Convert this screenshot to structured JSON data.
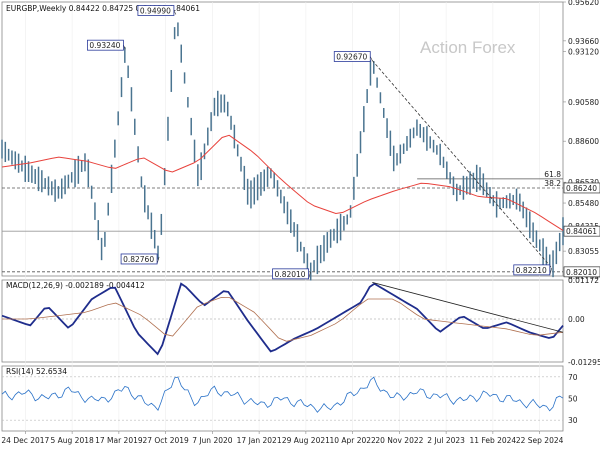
{
  "chart_data": [
    {
      "type": "line",
      "subtype": "ohlc-bars",
      "title": "EURGBP,Weekly",
      "ohlc_label": "0.84422 0.84725 0.84030 0.84061",
      "watermark": "Action Forex",
      "ylim": [
        0.818,
        0.9562
      ],
      "y_tick_labels": [
        "0.95620",
        "0.93660",
        "0.93120",
        "0.90580",
        "0.88600",
        "0.86530",
        "0.85480",
        "0.84315",
        "0.83055",
        "0.81795"
      ],
      "y_tick_values": [
        0.9562,
        0.9366,
        0.9312,
        0.9058,
        0.886,
        0.8653,
        0.8548,
        0.84315,
        0.83055,
        0.81795
      ],
      "series": [
        {
          "name": "price",
          "color": "#4a7490",
          "x": [
            0,
            5,
            10,
            15,
            18,
            21,
            22,
            25,
            28,
            31,
            35,
            38,
            40,
            44,
            48,
            52,
            55,
            58,
            62,
            66,
            70,
            74,
            78,
            81,
            85,
            88,
            92,
            95,
            98,
            100
          ],
          "values": [
            0.882,
            0.87,
            0.86,
            0.876,
            0.8276,
            0.905,
            0.9324,
            0.862,
            0.8276,
            0.9499,
            0.867,
            0.905,
            0.905,
            0.858,
            0.87,
            0.842,
            0.8201,
            0.835,
            0.848,
            0.9267,
            0.875,
            0.893,
            0.88,
            0.86,
            0.868,
            0.854,
            0.857,
            0.838,
            0.8221,
            0.8406
          ]
        },
        {
          "name": "SMA",
          "color": "#e8423c",
          "x": [
            0,
            5,
            10,
            15,
            20,
            25,
            30,
            35,
            40,
            45,
            50,
            55,
            60,
            65,
            70,
            75,
            80,
            85,
            90,
            95,
            100
          ],
          "values": [
            0.873,
            0.875,
            0.878,
            0.876,
            0.872,
            0.878,
            0.87,
            0.876,
            0.89,
            0.88,
            0.866,
            0.854,
            0.849,
            0.856,
            0.861,
            0.865,
            0.863,
            0.858,
            0.857,
            0.85,
            0.841
          ]
        }
      ],
      "annotations": [
        {
          "label": "0.93240",
          "x": 22,
          "y": 0.9324
        },
        {
          "label": "0.94990",
          "x": 31,
          "y": 0.9499
        },
        {
          "label": "0.82760",
          "x": 28,
          "y": 0.8276
        },
        {
          "label": "0.92670",
          "x": 66,
          "y": 0.9267
        },
        {
          "label": "0.82010",
          "x": 55,
          "y": 0.8201
        },
        {
          "label": "0.82210",
          "x": 98,
          "y": 0.8221
        }
      ],
      "levels": [
        {
          "value": 0.8624,
          "label": "0.86240",
          "fib_label": "38.2",
          "style": "dashed"
        },
        {
          "value": 0.867,
          "fib_label": "61.8",
          "style": "solid"
        },
        {
          "value": 0.8201,
          "label": "0.82010",
          "style": "dashed"
        },
        {
          "value": 0.84061,
          "label": "0.84061",
          "style": "solid",
          "boxed": true
        }
      ],
      "trendline": {
        "from": [
          66,
          0.9267
        ],
        "to": [
          98,
          0.8221
        ],
        "style": "dashed"
      }
    },
    {
      "type": "line",
      "title": "MACD(12,26,9) -0.002189 -0.004412",
      "ylim": [
        -0.01295,
        0.01173
      ],
      "y_tick_labels": [
        "0.011727",
        "0.00",
        "-0.012951"
      ],
      "series": [
        {
          "name": "MACD",
          "color": "#1f2d8c",
          "x": [
            0,
            5,
            8,
            12,
            16,
            20,
            24,
            28,
            32,
            36,
            40,
            44,
            48,
            52,
            56,
            60,
            64,
            66,
            70,
            74,
            78,
            82,
            86,
            90,
            94,
            98,
            100
          ],
          "values": [
            0.001,
            -0.002,
            0.004,
            -0.003,
            0.006,
            0.01,
            -0.004,
            -0.011,
            0.011,
            0.004,
            0.009,
            -0.001,
            -0.01,
            -0.006,
            -0.003,
            0.001,
            0.005,
            0.011,
            0.007,
            0.003,
            -0.004,
            0.001,
            -0.003,
            -0.001,
            -0.004,
            -0.006,
            -0.002
          ]
        },
        {
          "name": "Signal",
          "color": "#b07050",
          "x": [
            0,
            5,
            10,
            15,
            20,
            25,
            30,
            35,
            40,
            45,
            50,
            55,
            60,
            65,
            70,
            75,
            80,
            85,
            90,
            95,
            100
          ],
          "values": [
            0.0,
            0.0,
            0.001,
            0.002,
            0.005,
            0.001,
            -0.006,
            0.004,
            0.007,
            0.002,
            -0.007,
            -0.005,
            -0.001,
            0.006,
            0.006,
            0.0,
            -0.001,
            -0.002,
            -0.003,
            -0.005,
            -0.004
          ]
        }
      ],
      "trendline": {
        "from": [
          66,
          0.011
        ],
        "to": [
          100,
          -0.004
        ]
      }
    },
    {
      "type": "line",
      "title": "RSI(14) 52.6534",
      "ylim": [
        20,
        80
      ],
      "y_tick_labels": [
        "70",
        "50",
        "30"
      ],
      "levels": [
        70,
        30
      ],
      "series": [
        {
          "name": "RSI",
          "color": "#2a72c8",
          "x": [
            0,
            4,
            8,
            12,
            16,
            20,
            22,
            24,
            28,
            31,
            34,
            38,
            42,
            46,
            50,
            54,
            58,
            62,
            66,
            70,
            74,
            78,
            82,
            86,
            90,
            94,
            98,
            100
          ],
          "values": [
            52,
            55,
            50,
            58,
            48,
            52,
            62,
            50,
            42,
            72,
            46,
            58,
            52,
            44,
            50,
            44,
            40,
            52,
            66,
            50,
            56,
            52,
            48,
            54,
            50,
            45,
            42,
            52.7
          ]
        }
      ]
    }
  ],
  "x_axis": {
    "labels": [
      "24 Dec 2017",
      "5 Aug 2018",
      "17 Mar 2019",
      "27 Oct 2019",
      "7 Jun 2020",
      "17 Jan 2021",
      "29 Aug 2021",
      "10 Apr 2022",
      "20 Nov 2022",
      "2 Jul 2023",
      "11 Feb 2024",
      "22 Sep 2024"
    ]
  }
}
